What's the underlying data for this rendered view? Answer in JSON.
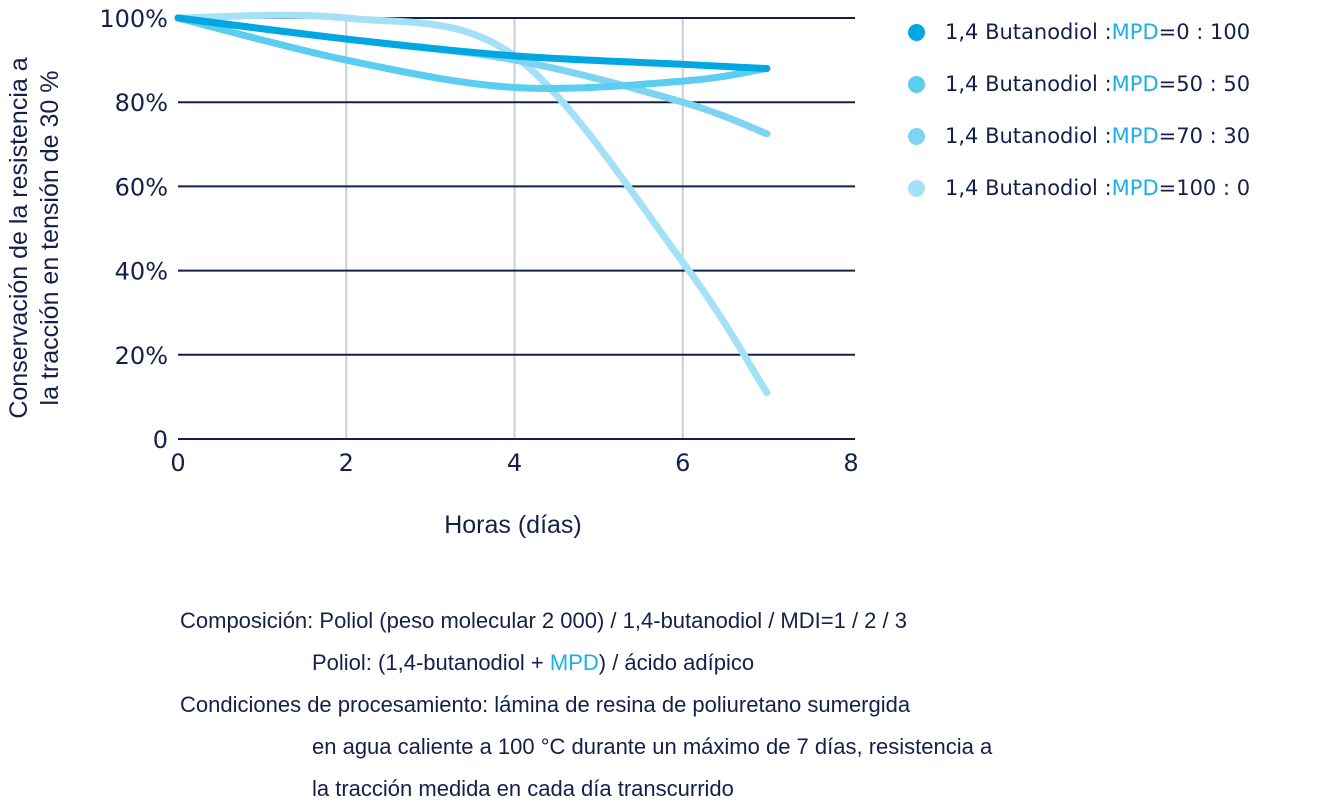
{
  "chart_data": {
    "type": "line",
    "title": "",
    "xlabel": "Horas (días)",
    "ylabel": "Conservación de la resistencia a la tracción en tensión de 30 %",
    "ylabel_lines": [
      "Conservación de la resistencia a",
      "la tracción en tensión de 30 %"
    ],
    "x_ticks": [
      "0",
      "2",
      "4",
      "6",
      "8"
    ],
    "y_ticks": [
      "0",
      "20%",
      "40%",
      "60%",
      "80%",
      "100%"
    ],
    "xlim": [
      0,
      8
    ],
    "ylim": [
      0,
      100
    ],
    "grid": {
      "horizontal": true,
      "vertical": true
    },
    "legend_position": "top-right, outside",
    "x": [
      0,
      2,
      4,
      6,
      7
    ],
    "series": [
      {
        "name": "1,4 Butanodiol : MPD=0 : 100",
        "color": "#00a7e1",
        "values": [
          100,
          95,
          91,
          89,
          88
        ]
      },
      {
        "name": "1,4 Butanodiol : MPD=50 : 50",
        "color": "#5acdf0",
        "values": [
          100,
          90,
          83.5,
          85,
          88
        ]
      },
      {
        "name": "1,4 Butanodiol : MPD=70 : 30",
        "color": "#7dd4f2",
        "values": [
          100,
          95,
          90,
          80,
          72.5
        ]
      },
      {
        "name": "1,4 Butanodiol : MPD=100 : 0",
        "color": "#a4e1f6",
        "values": [
          100,
          100,
          91,
          42,
          11
        ]
      }
    ]
  },
  "legend": [
    {
      "prefix": "1,4 Butanodiol : ",
      "mpd": "MPD",
      "ratio": "=0 : 100",
      "color": "#00a7e1"
    },
    {
      "prefix": "1,4 Butanodiol : ",
      "mpd": "MPD",
      "ratio": "=50 : 50",
      "color": "#5acdf0"
    },
    {
      "prefix": "1,4 Butanodiol : ",
      "mpd": "MPD",
      "ratio": "=70 : 30",
      "color": "#7dd4f2"
    },
    {
      "prefix": "1,4 Butanodiol : ",
      "mpd": "MPD",
      "ratio": "=100 : 0",
      "color": "#a4e1f6"
    }
  ],
  "notes": {
    "line1": "Composición: Poliol (peso molecular 2 000) / 1,4-butanodiol / MDI=1 / 2 / 3",
    "line2_pre": "Poliol: (1,4-butanodiol + ",
    "line2_mpd": "MPD",
    "line2_post": ") / ácido adípico",
    "line3": "Condiciones de procesamiento: lámina de resina de poliuretano sumergida",
    "line4": "en agua caliente a 100 °C durante un máximo de 7 días, resistencia a",
    "line5": "la tracción medida en cada día transcurrido"
  },
  "colors": {
    "text": "#14204a",
    "axis": "#14204a",
    "vgrid": "#c9cfda",
    "accent": "#1ab0e6"
  }
}
